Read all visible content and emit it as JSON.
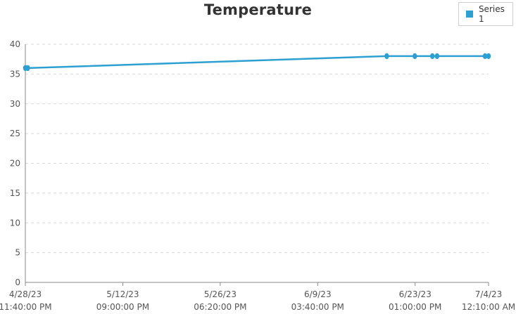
{
  "chart_data": {
    "type": "line",
    "title": "Temperature",
    "xlabel": "",
    "ylabel": "",
    "ylim": [
      0,
      40
    ],
    "yticks": [
      0,
      5,
      10,
      15,
      20,
      25,
      30,
      35,
      40
    ],
    "grid": true,
    "legend_position": "top-right",
    "x_ticks": [
      {
        "date": "4/28/23",
        "time": "11:40:00 PM",
        "iso": "2023-04-28T23:40:00"
      },
      {
        "date": "5/12/23",
        "time": "09:00:00 PM",
        "iso": "2023-05-12T21:00:00"
      },
      {
        "date": "5/26/23",
        "time": "06:20:00 PM",
        "iso": "2023-05-26T18:20:00"
      },
      {
        "date": "6/9/23",
        "time": "03:40:00 PM",
        "iso": "2023-06-09T15:40:00"
      },
      {
        "date": "6/23/23",
        "time": "01:00:00 PM",
        "iso": "2023-06-23T13:00:00"
      },
      {
        "date": "7/4/23",
        "time": "12:10:00 AM",
        "iso": "2023-07-04T00:10:00"
      }
    ],
    "series": [
      {
        "name": "Series 1",
        "color": "#2e9fd1",
        "points": [
          {
            "x": "2023-04-28T23:40:00",
            "y": 36
          },
          {
            "x": "2023-04-29T08:00:00",
            "y": 36
          },
          {
            "x": "2023-06-19T12:00:00",
            "y": 38
          },
          {
            "x": "2023-06-23T12:00:00",
            "y": 38
          },
          {
            "x": "2023-06-26T00:00:00",
            "y": 38
          },
          {
            "x": "2023-06-26T16:00:00",
            "y": 38
          },
          {
            "x": "2023-07-03T12:00:00",
            "y": 38
          },
          {
            "x": "2023-07-04T00:10:00",
            "y": 38
          }
        ]
      }
    ]
  }
}
